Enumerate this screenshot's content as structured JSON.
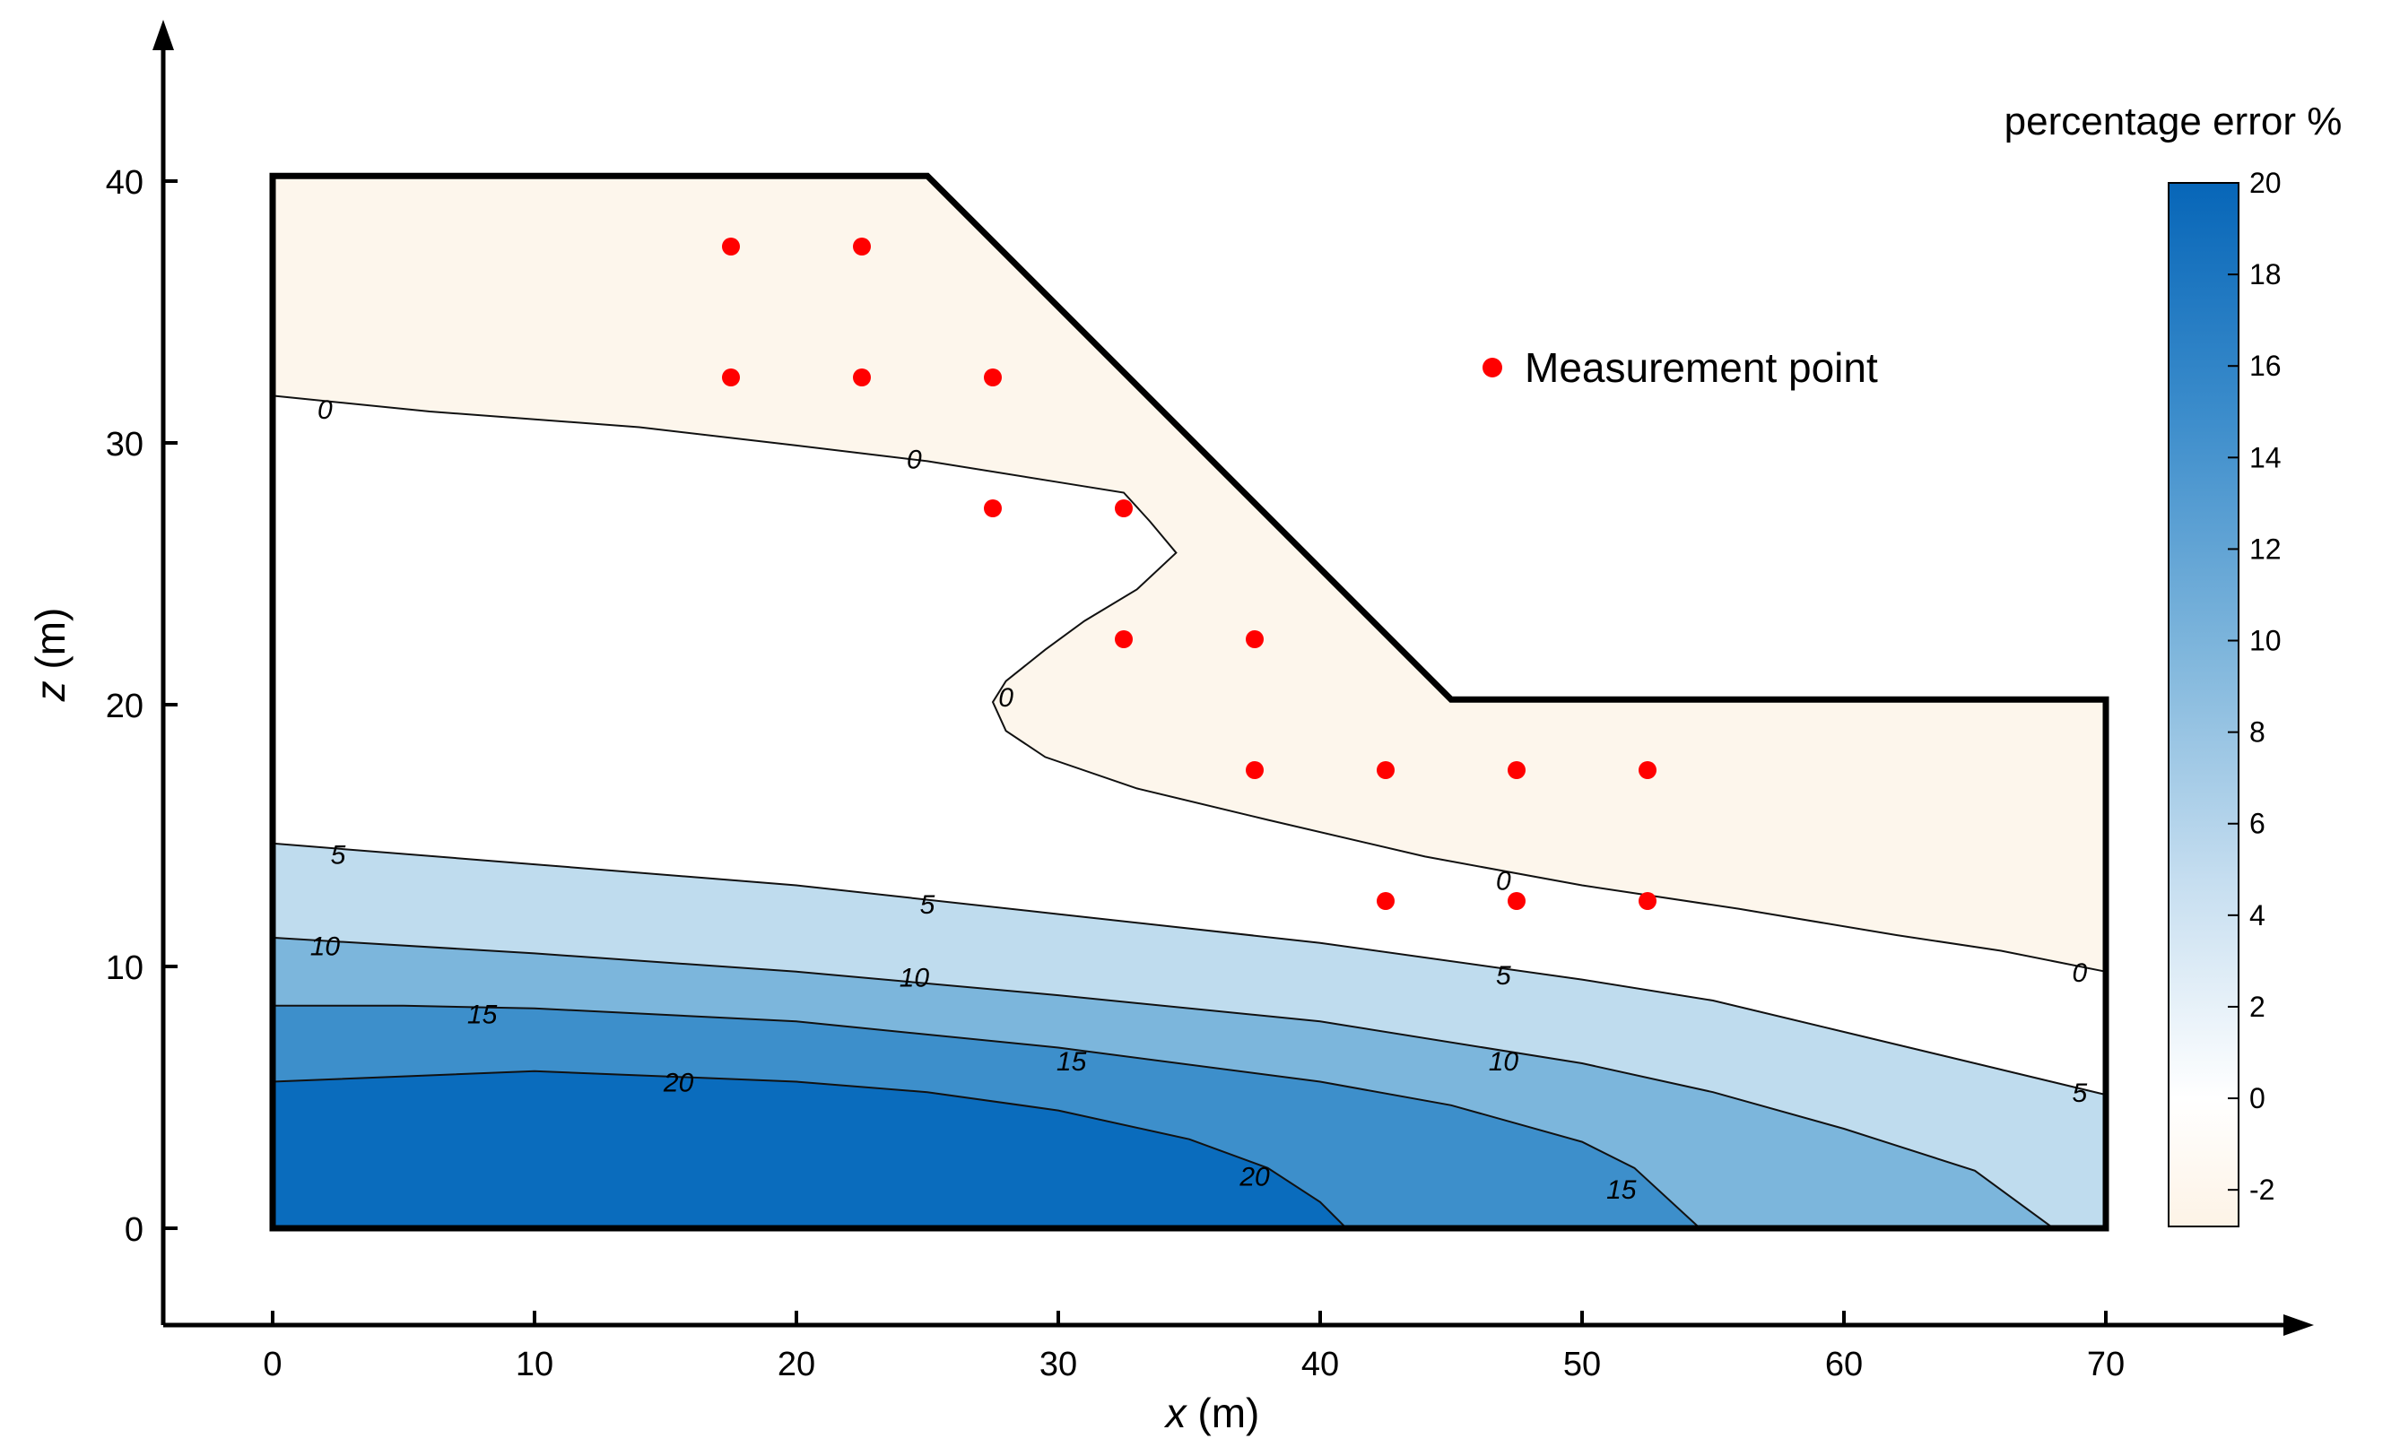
{
  "chart_data": {
    "type": "contour",
    "xlabel": "x (m)",
    "ylabel": "z (m)",
    "xlim": [
      -4,
      78
    ],
    "ylim": [
      -3.5,
      46
    ],
    "x_ticks": [
      0,
      10,
      20,
      30,
      40,
      50,
      60,
      70
    ],
    "y_ticks": [
      0,
      10,
      20,
      30,
      40
    ],
    "boundary": [
      [
        0,
        0
      ],
      [
        0,
        40.2
      ],
      [
        25,
        40.2
      ],
      [
        45,
        20.2
      ],
      [
        70,
        20.2
      ],
      [
        70,
        0
      ]
    ],
    "colorbar": {
      "title": "percentage error %",
      "min": -2.8,
      "max": 20,
      "ticks": [
        -2,
        0,
        2,
        4,
        6,
        8,
        10,
        12,
        14,
        16,
        18,
        20
      ]
    },
    "fill_colors": {
      "below_0": "#fdf6ec",
      "0_to_5": "#ffffff",
      "5_to_10": "#bfdcee",
      "10_to_15": "#7cb6dc",
      "15_to_20": "#3d8fcb",
      "above_20": "#0a6cbd"
    },
    "contours": [
      {
        "level": 0,
        "points": [
          [
            0,
            31.8
          ],
          [
            6,
            31.2
          ],
          [
            14,
            30.6
          ],
          [
            20,
            29.9
          ],
          [
            25,
            29.3
          ],
          [
            30,
            28.5
          ],
          [
            32.5,
            28.1
          ],
          [
            33.5,
            27
          ],
          [
            34.5,
            25.8
          ],
          [
            33,
            24.4
          ],
          [
            31,
            23.2
          ],
          [
            29.5,
            22.1
          ],
          [
            28,
            20.9
          ],
          [
            27.5,
            20.1
          ],
          [
            28,
            19
          ],
          [
            29.5,
            18
          ],
          [
            33,
            16.8
          ],
          [
            38,
            15.6
          ],
          [
            44,
            14.2
          ],
          [
            50,
            13.1
          ],
          [
            56,
            12.2
          ],
          [
            62,
            11.2
          ],
          [
            66,
            10.6
          ],
          [
            70,
            9.8
          ]
        ],
        "labels": [
          [
            2,
            31.3
          ],
          [
            24.5,
            29.4
          ],
          [
            28,
            20.3
          ],
          [
            47,
            13.3
          ],
          [
            69,
            9.8
          ]
        ]
      },
      {
        "level": 5,
        "points": [
          [
            0,
            14.7
          ],
          [
            10,
            13.9
          ],
          [
            20,
            13.1
          ],
          [
            30,
            12
          ],
          [
            40,
            10.9
          ],
          [
            50,
            9.5
          ],
          [
            55,
            8.7
          ],
          [
            60,
            7.5
          ],
          [
            65,
            6.3
          ],
          [
            70,
            5.1
          ]
        ],
        "labels": [
          [
            2.5,
            14.3
          ],
          [
            25,
            12.4
          ],
          [
            47,
            9.7
          ],
          [
            69,
            5.2
          ]
        ]
      },
      {
        "level": 10,
        "points": [
          [
            0,
            11.1
          ],
          [
            10,
            10.5
          ],
          [
            20,
            9.8
          ],
          [
            30,
            8.9
          ],
          [
            40,
            7.9
          ],
          [
            50,
            6.3
          ],
          [
            55,
            5.2
          ],
          [
            60,
            3.8
          ],
          [
            65,
            2.2
          ],
          [
            68,
            0
          ]
        ],
        "labels": [
          [
            2,
            10.8
          ],
          [
            24.5,
            9.6
          ],
          [
            47,
            6.4
          ]
        ]
      },
      {
        "level": 15,
        "points": [
          [
            0,
            8.5
          ],
          [
            5,
            8.5
          ],
          [
            10,
            8.4
          ],
          [
            20,
            7.9
          ],
          [
            30,
            6.9
          ],
          [
            40,
            5.6
          ],
          [
            45,
            4.7
          ],
          [
            50,
            3.3
          ],
          [
            52,
            2.3
          ],
          [
            54.5,
            0
          ]
        ],
        "labels": [
          [
            8,
            8.2
          ],
          [
            30.5,
            6.4
          ],
          [
            51.5,
            1.5
          ]
        ]
      },
      {
        "level": 20,
        "points": [
          [
            0,
            5.6
          ],
          [
            5,
            5.8
          ],
          [
            10,
            6
          ],
          [
            15,
            5.8
          ],
          [
            20,
            5.6
          ],
          [
            25,
            5.2
          ],
          [
            30,
            4.5
          ],
          [
            35,
            3.4
          ],
          [
            38,
            2.3
          ],
          [
            40,
            1
          ],
          [
            41,
            0
          ]
        ],
        "labels": [
          [
            15.5,
            5.6
          ],
          [
            37.5,
            2
          ]
        ]
      }
    ],
    "measurement_points": [
      [
        17.5,
        37.5
      ],
      [
        22.5,
        37.5
      ],
      [
        17.5,
        32.5
      ],
      [
        22.5,
        32.5
      ],
      [
        27.5,
        32.5
      ],
      [
        27.5,
        27.5
      ],
      [
        32.5,
        27.5
      ],
      [
        32.5,
        22.5
      ],
      [
        37.5,
        22.5
      ],
      [
        37.5,
        17.5
      ],
      [
        42.5,
        17.5
      ],
      [
        47.5,
        17.5
      ],
      [
        52.5,
        17.5
      ],
      [
        42.5,
        12.5
      ],
      [
        47.5,
        12.5
      ],
      [
        52.5,
        12.5
      ]
    ],
    "legend": {
      "label": "Measurement point",
      "position": "top-right",
      "marker_color": "#ff0000"
    }
  }
}
